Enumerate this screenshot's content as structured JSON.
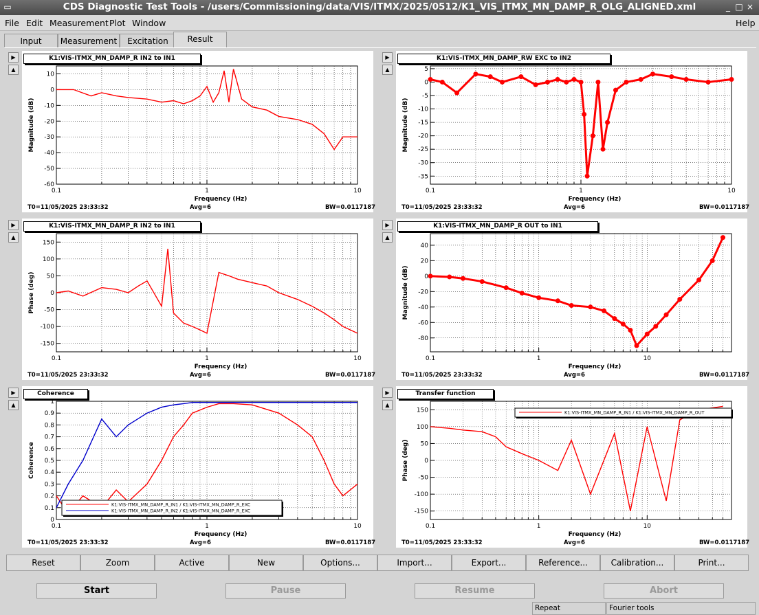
{
  "window": {
    "title": "CDS Diagnostic Test Tools - /users/Commissioning/data/VIS/ITMX/2025/0512/K1_VIS_ITMX_MN_DAMP_R_OLG_ALIGNED.xml",
    "minimize": "_",
    "maximize": "□",
    "close": "×"
  },
  "menu": {
    "file": "File",
    "edit": "Edit",
    "measurement": "Measurement",
    "plot": "Plot",
    "window": "Window",
    "help": "Help"
  },
  "tabs": [
    "Input",
    "Measurement",
    "Excitation",
    "Result"
  ],
  "panels": [
    {
      "title": "K1:VIS-ITMX_MN_DAMP_R IN2 to IN1",
      "chart_data": {
        "type": "line",
        "title": "K1:VIS-ITMX_MN_DAMP_R IN2 to IN1",
        "xlabel": "Frequency (Hz)",
        "ylabel": "Magnitude (dB)",
        "xscale": "log",
        "xlim": [
          0.1,
          10
        ],
        "ylim": [
          -60,
          15
        ],
        "yticks": [
          10,
          0,
          -10,
          -20,
          -30,
          -40,
          -50,
          -60
        ],
        "x": [
          0.1,
          0.13,
          0.17,
          0.2,
          0.25,
          0.3,
          0.4,
          0.5,
          0.6,
          0.7,
          0.8,
          0.9,
          1.0,
          1.1,
          1.2,
          1.3,
          1.4,
          1.5,
          1.7,
          2.0,
          2.5,
          3.0,
          4.0,
          5.0,
          6.0,
          7.0,
          8.0,
          10.0
        ],
        "series": [
          {
            "color": "#ff0000",
            "values": [
              0,
              0,
              -4,
              -2,
              -4,
              -5,
              -6,
              -8,
              -7,
              -9,
              -7,
              -4,
              2,
              -8,
              -2,
              12,
              -8,
              13,
              -6,
              -11,
              -13,
              -17,
              -19,
              -22,
              -28,
              -38,
              -30,
              -30
            ]
          }
        ],
        "grid": true
      }
    },
    {
      "title": "K1:VIS-ITMX_MN_DAMP_RW EXC to IN2",
      "chart_data": {
        "type": "line",
        "title": "K1:VIS-ITMX_MN_DAMP_RW EXC to IN2",
        "xlabel": "Frequency (Hz)",
        "ylabel": "Magnitude (dB)",
        "xscale": "log",
        "xlim": [
          0.1,
          10
        ],
        "ylim": [
          -38,
          6
        ],
        "yticks": [
          5,
          0,
          -5,
          -10,
          -15,
          -20,
          -25,
          -30,
          -35
        ],
        "x": [
          0.1,
          0.12,
          0.15,
          0.2,
          0.25,
          0.3,
          0.4,
          0.5,
          0.6,
          0.7,
          0.8,
          0.9,
          1.0,
          1.05,
          1.1,
          1.2,
          1.3,
          1.4,
          1.5,
          1.7,
          2.0,
          2.5,
          3.0,
          4.0,
          5.0,
          7.0,
          10.0
        ],
        "series": [
          {
            "color": "#ff0000",
            "values": [
              1,
              0,
              -4,
              3,
              2,
              0,
              2,
              -1,
              0,
              1,
              0,
              1,
              0,
              -12,
              -35,
              -20,
              0,
              -25,
              -15,
              -3,
              0,
              1,
              3,
              2,
              1,
              0,
              1
            ]
          }
        ],
        "grid": true
      }
    },
    {
      "title": "K1:VIS-ITMX_MN_DAMP_R IN2 to IN1",
      "chart_data": {
        "type": "line",
        "title": "K1:VIS-ITMX_MN_DAMP_R IN2 to IN1",
        "xlabel": "Frequency (Hz)",
        "ylabel": "Phase (deg)",
        "xscale": "log",
        "xlim": [
          0.1,
          10
        ],
        "ylim": [
          -175,
          175
        ],
        "yticks": [
          150,
          100,
          50,
          0,
          -50,
          -100,
          -150
        ],
        "x": [
          0.1,
          0.12,
          0.15,
          0.2,
          0.25,
          0.3,
          0.35,
          0.4,
          0.5,
          0.55,
          0.6,
          0.7,
          0.8,
          0.9,
          1.0,
          1.2,
          1.4,
          1.6,
          2.0,
          2.5,
          3.0,
          4.0,
          5.0,
          6.0,
          7.0,
          8.0,
          10.0
        ],
        "series": [
          {
            "color": "#ff0000",
            "values": [
              0,
              5,
              -10,
              15,
              10,
              0,
              20,
              35,
              -40,
              130,
              -60,
              -90,
              -100,
              -110,
              -120,
              60,
              50,
              40,
              30,
              20,
              0,
              -20,
              -40,
              -60,
              -80,
              -100,
              -120
            ]
          }
        ],
        "grid": true
      }
    },
    {
      "title": "K1:VIS-ITMX_MN_DAMP_R OUT to IN1",
      "chart_data": {
        "type": "line",
        "title": "K1:VIS-ITMX_MN_DAMP_R OUT to IN1",
        "xlabel": "Frequency (Hz)",
        "ylabel": "Magnitude (dB)",
        "xscale": "log",
        "xlim": [
          0.1,
          60
        ],
        "ylim": [
          -98,
          55
        ],
        "yticks": [
          40,
          20,
          0,
          -20,
          -40,
          -60,
          -80
        ],
        "x": [
          0.1,
          0.15,
          0.2,
          0.3,
          0.5,
          0.7,
          1.0,
          1.5,
          2.0,
          3.0,
          4.0,
          5.0,
          6.0,
          7.0,
          8.0,
          10.0,
          12.0,
          15.0,
          20.0,
          30.0,
          40.0,
          50.0
        ],
        "series": [
          {
            "color": "#ff0000",
            "values": [
              0,
              -1,
              -3,
              -7,
              -15,
              -22,
              -28,
              -32,
              -38,
              -40,
              -45,
              -55,
              -62,
              -70,
              -90,
              -75,
              -65,
              -50,
              -30,
              -5,
              20,
              50
            ]
          }
        ],
        "grid": true
      }
    },
    {
      "title": "Coherence",
      "chart_data": {
        "type": "line",
        "title": "Coherence",
        "xlabel": "Frequency (Hz)",
        "ylabel": "Coherence",
        "xscale": "log",
        "xlim": [
          0.1,
          10
        ],
        "ylim": [
          0,
          1
        ],
        "yticks": [
          1,
          0.9,
          0.8,
          0.7,
          0.6,
          0.5,
          0.4,
          0.3,
          0.2,
          0.1,
          0
        ],
        "x": [
          0.1,
          0.12,
          0.15,
          0.2,
          0.25,
          0.3,
          0.4,
          0.5,
          0.6,
          0.7,
          0.8,
          1.0,
          1.2,
          1.5,
          2.0,
          3.0,
          4.0,
          5.0,
          6.0,
          7.0,
          8.0,
          10.0
        ],
        "series": [
          {
            "name": "K1:VIS-ITMX_MN_DAMP_R_IN1 / K1:VIS-ITMX_MN_DAMP_R_EXC",
            "color": "#ff0000",
            "values": [
              0.2,
              0.05,
              0.2,
              0.1,
              0.25,
              0.15,
              0.3,
              0.5,
              0.7,
              0.8,
              0.9,
              0.95,
              0.98,
              0.98,
              0.97,
              0.9,
              0.8,
              0.7,
              0.5,
              0.3,
              0.2,
              0.3
            ]
          },
          {
            "name": "K1:VIS-ITMX_MN_DAMP_R_IN2 / K1:VIS-ITMX_MN_DAMP_R_EXC",
            "color": "#0000cc",
            "values": [
              0.1,
              0.3,
              0.5,
              0.85,
              0.7,
              0.8,
              0.9,
              0.95,
              0.97,
              0.98,
              0.99,
              0.99,
              0.99,
              0.99,
              0.99,
              0.99,
              0.99,
              0.99,
              0.99,
              0.99,
              0.99,
              0.99
            ]
          }
        ],
        "legend": "bottom-left",
        "grid": true
      }
    },
    {
      "title": "Transfer function",
      "chart_data": {
        "type": "line",
        "title": "Transfer function",
        "xlabel": "Frequency (Hz)",
        "ylabel": "Phase (deg)",
        "xscale": "log",
        "xlim": [
          0.1,
          60
        ],
        "ylim": [
          -175,
          175
        ],
        "yticks": [
          150,
          100,
          50,
          0,
          -50,
          -100,
          -150
        ],
        "x": [
          0.1,
          0.15,
          0.2,
          0.3,
          0.4,
          0.5,
          0.7,
          1.0,
          1.5,
          2.0,
          3.0,
          5.0,
          7.0,
          10.0,
          15.0,
          20.0,
          30.0,
          50.0
        ],
        "series": [
          {
            "name": "K1:VIS-ITMX_MN_DAMP_R_IN1 / K1:VIS-ITMX_MN_DAMP_R_OUT",
            "color": "#ff0000",
            "values": [
              100,
              95,
              90,
              85,
              70,
              40,
              20,
              0,
              -30,
              60,
              -100,
              80,
              -150,
              100,
              -120,
              120,
              150,
              160
            ]
          }
        ],
        "legend": "top-right",
        "grid": true
      }
    }
  ],
  "footer": {
    "t0": "T0=11/05/2025 23:33:32",
    "avg": "Avg=6",
    "bw": "BW=0.0117187"
  },
  "toolbar": [
    "Reset",
    "Zoom",
    "Active",
    "New",
    "Options...",
    "Import...",
    "Export...",
    "Reference...",
    "Calibration...",
    "Print..."
  ],
  "controls": {
    "start": "Start",
    "pause": "Pause",
    "resume": "Resume",
    "abort": "Abort"
  },
  "status": {
    "left": "Repeat",
    "right": "Fourier tools"
  },
  "side_arrows": {
    "right": "▶",
    "up": "▲"
  }
}
